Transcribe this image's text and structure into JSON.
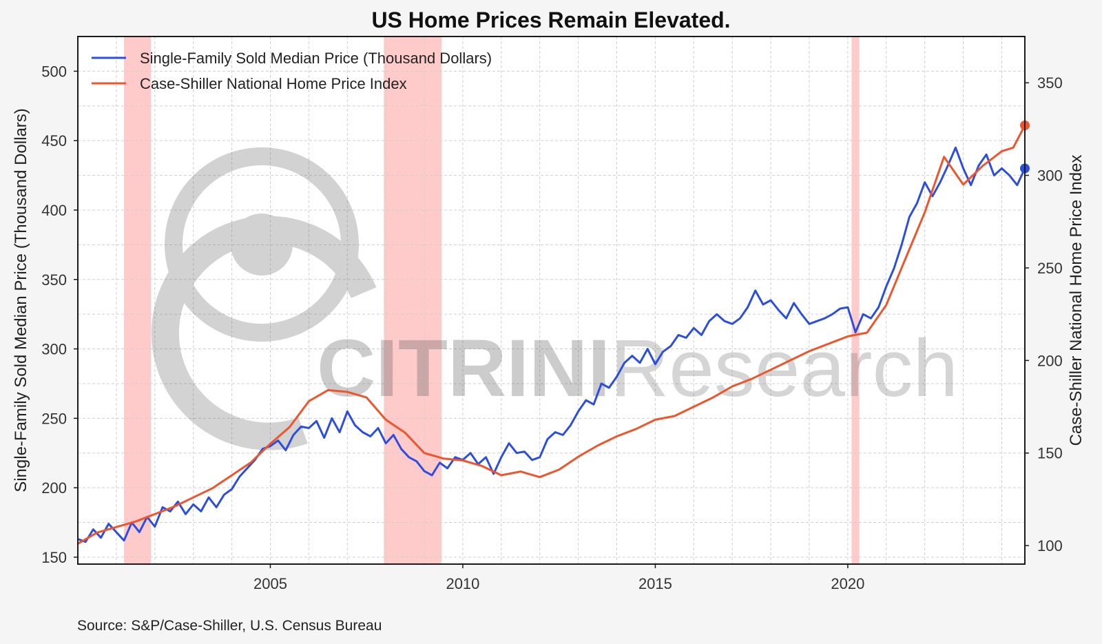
{
  "chart_data": {
    "type": "line",
    "title": "US Home Prices Remain Elevated.",
    "source": "Source: S&P/Case-Shiller, U.S. Census Bureau",
    "watermark": {
      "brand": "CITRINI",
      "suffix": "Research"
    },
    "x_range": [
      2000.0,
      2024.6
    ],
    "x_ticks": [
      2005,
      2010,
      2015,
      2020
    ],
    "y_left": {
      "label": "Single-Family Sold Median Price (Thousand Dollars)",
      "range": [
        145,
        525
      ],
      "ticks": [
        150,
        200,
        250,
        300,
        350,
        400,
        450,
        500
      ]
    },
    "y_right": {
      "label": "Case-Shiller National Home Price Index",
      "range": [
        90,
        375
      ],
      "ticks": [
        100,
        150,
        200,
        250,
        300,
        350
      ]
    },
    "grid": true,
    "legend_position": "top-left",
    "recessions": [
      [
        2001.2,
        2001.9
      ],
      [
        2007.95,
        2009.45
      ],
      [
        2020.1,
        2020.3
      ]
    ],
    "series": [
      {
        "name": "Single-Family Sold Median Price (Thousand Dollars)",
        "axis": "left",
        "color": "#2b4ee0",
        "x": [
          2000.0,
          2000.2,
          2000.4,
          2000.6,
          2000.8,
          2001.0,
          2001.2,
          2001.4,
          2001.6,
          2001.8,
          2002.0,
          2002.2,
          2002.4,
          2002.6,
          2002.8,
          2003.0,
          2003.2,
          2003.4,
          2003.6,
          2003.8,
          2004.0,
          2004.2,
          2004.4,
          2004.6,
          2004.8,
          2005.0,
          2005.2,
          2005.4,
          2005.6,
          2005.8,
          2006.0,
          2006.2,
          2006.4,
          2006.6,
          2006.8,
          2007.0,
          2007.2,
          2007.4,
          2007.6,
          2007.8,
          2008.0,
          2008.2,
          2008.4,
          2008.6,
          2008.8,
          2009.0,
          2009.2,
          2009.4,
          2009.6,
          2009.8,
          2010.0,
          2010.2,
          2010.4,
          2010.6,
          2010.8,
          2011.0,
          2011.2,
          2011.4,
          2011.6,
          2011.8,
          2012.0,
          2012.2,
          2012.4,
          2012.6,
          2012.8,
          2013.0,
          2013.2,
          2013.4,
          2013.6,
          2013.8,
          2014.0,
          2014.2,
          2014.4,
          2014.6,
          2014.8,
          2015.0,
          2015.2,
          2015.4,
          2015.6,
          2015.8,
          2016.0,
          2016.2,
          2016.4,
          2016.6,
          2016.8,
          2017.0,
          2017.2,
          2017.4,
          2017.6,
          2017.8,
          2018.0,
          2018.2,
          2018.4,
          2018.6,
          2018.8,
          2019.0,
          2019.2,
          2019.4,
          2019.6,
          2019.8,
          2020.0,
          2020.2,
          2020.4,
          2020.6,
          2020.8,
          2021.0,
          2021.2,
          2021.4,
          2021.6,
          2021.8,
          2022.0,
          2022.2,
          2022.4,
          2022.6,
          2022.8,
          2023.0,
          2023.2,
          2023.4,
          2023.6,
          2023.8,
          2024.0,
          2024.2,
          2024.4,
          2024.6
        ],
        "values": [
          163,
          161,
          170,
          164,
          174,
          168,
          162,
          175,
          168,
          179,
          172,
          186,
          183,
          190,
          181,
          188,
          183,
          193,
          186,
          195,
          199,
          208,
          214,
          220,
          228,
          230,
          234,
          227,
          238,
          244,
          243,
          248,
          236,
          250,
          240,
          255,
          245,
          240,
          237,
          243,
          232,
          238,
          228,
          222,
          219,
          212,
          209,
          218,
          214,
          222,
          220,
          225,
          217,
          222,
          210,
          222,
          232,
          225,
          226,
          220,
          222,
          235,
          240,
          238,
          245,
          255,
          263,
          260,
          275,
          272,
          280,
          290,
          295,
          290,
          300,
          289,
          298,
          302,
          310,
          308,
          315,
          310,
          320,
          325,
          320,
          318,
          322,
          330,
          342,
          332,
          335,
          328,
          322,
          333,
          325,
          318,
          320,
          322,
          325,
          329,
          330,
          312,
          325,
          322,
          330,
          345,
          358,
          375,
          395,
          405,
          420,
          410,
          420,
          432,
          445,
          430,
          418,
          432,
          440,
          425,
          430,
          425,
          418,
          430
        ]
      },
      {
        "name": "Case-Shiller National Home Price Index",
        "axis": "right",
        "color": "#f0542b",
        "x": [
          2000.0,
          2000.5,
          2001.0,
          2001.5,
          2002.0,
          2002.5,
          2003.0,
          2003.5,
          2004.0,
          2004.5,
          2005.0,
          2005.5,
          2006.0,
          2006.5,
          2007.0,
          2007.5,
          2008.0,
          2008.5,
          2009.0,
          2009.5,
          2010.0,
          2010.5,
          2011.0,
          2011.5,
          2012.0,
          2012.5,
          2013.0,
          2013.5,
          2014.0,
          2014.5,
          2015.0,
          2015.5,
          2016.0,
          2016.5,
          2017.0,
          2017.5,
          2018.0,
          2018.5,
          2019.0,
          2019.5,
          2020.0,
          2020.5,
          2021.0,
          2021.5,
          2022.0,
          2022.5,
          2023.0,
          2023.5,
          2024.0,
          2024.3,
          2024.6
        ],
        "values": [
          101,
          107,
          110,
          113,
          117,
          121,
          126,
          131,
          138,
          145,
          155,
          164,
          178,
          184,
          183,
          180,
          168,
          161,
          150,
          147,
          146,
          143,
          138,
          140,
          137,
          141,
          148,
          154,
          159,
          163,
          168,
          170,
          175,
          180,
          186,
          190,
          195,
          200,
          205,
          209,
          213,
          215,
          230,
          255,
          280,
          310,
          295,
          305,
          313,
          315,
          327
        ]
      }
    ]
  }
}
